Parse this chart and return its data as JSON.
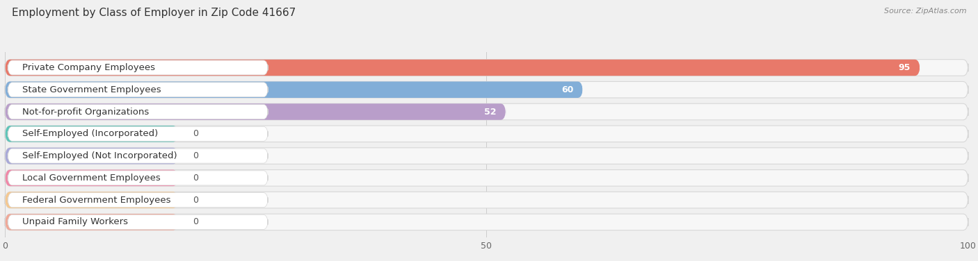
{
  "title": "Employment by Class of Employer in Zip Code 41667",
  "source": "Source: ZipAtlas.com",
  "categories": [
    "Private Company Employees",
    "State Government Employees",
    "Not-for-profit Organizations",
    "Self-Employed (Incorporated)",
    "Self-Employed (Not Incorporated)",
    "Local Government Employees",
    "Federal Government Employees",
    "Unpaid Family Workers"
  ],
  "values": [
    95,
    60,
    52,
    0,
    0,
    0,
    0,
    0
  ],
  "bar_colors": [
    "#e8796a",
    "#82aed8",
    "#b99eca",
    "#5ec4b8",
    "#a8a8d8",
    "#f088a8",
    "#f5c890",
    "#f0a898"
  ],
  "xlim": [
    0,
    100
  ],
  "xticks": [
    0,
    50,
    100
  ],
  "bg_color": "#f0f0f0",
  "row_bg_color": "#f7f7f7",
  "row_border_color": "#d8d8d8",
  "white_label_bg": "#ffffff",
  "title_fontsize": 11,
  "label_fontsize": 9.5,
  "value_fontsize": 9,
  "bar_height": 0.74,
  "zero_bar_width": 18
}
